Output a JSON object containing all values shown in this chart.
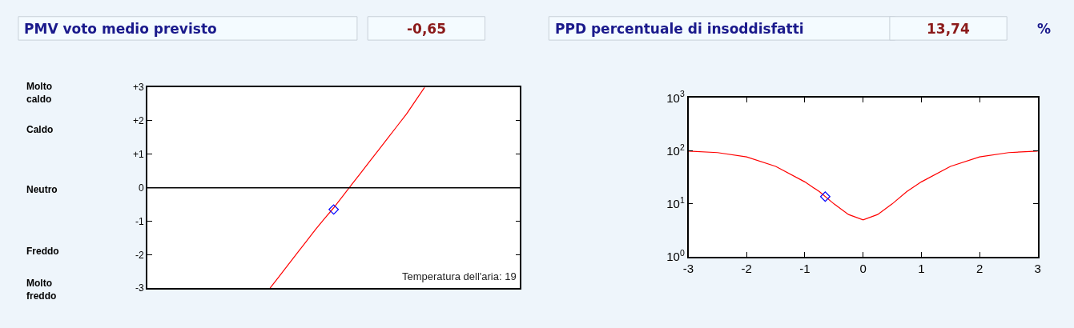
{
  "chart_data": [
    {
      "type": "line",
      "title": "PMV voto medio previsto",
      "annotations": [
        "-0,65",
        "Temperatura dell'aria: 19",
        "Molto caldo",
        "Caldo",
        "Neutro",
        "Freddo",
        "Molto freddo"
      ],
      "categories": [
        null,
        null,
        null,
        null,
        null,
        null,
        null,
        null,
        null,
        null,
        null,
        null,
        null,
        null,
        null,
        null,
        null,
        null,
        null,
        null,
        null,
        null,
        null,
        null,
        null,
        null,
        null,
        null,
        null,
        null,
        null,
        null,
        null,
        null,
        null,
        null,
        null,
        null,
        null,
        null,
        null
      ],
      "series": [
        {
          "color": "#ff0000",
          "marker": "none",
          "values": [
            null,
            null,
            null,
            null,
            null,
            null,
            null,
            null,
            null,
            null,
            null,
            null,
            null,
            -3,
            -2.65,
            -2.3,
            -1.95,
            -1.6,
            -1.25,
            -0.92,
            -0.6,
            -0.25,
            0.1,
            0.45,
            0.8,
            1.15,
            1.5,
            1.85,
            2.2,
            2.6,
            3,
            null,
            null,
            null,
            null,
            null,
            null,
            null,
            null,
            null,
            null
          ]
        },
        {
          "type": "scatter",
          "color": "#0000ff",
          "marker": "diamond",
          "values": [
            null,
            null,
            null,
            null,
            null,
            null,
            null,
            null,
            null,
            null,
            null,
            null,
            null,
            null,
            null,
            null,
            null,
            null,
            null,
            null,
            -0.65,
            null,
            null,
            null,
            null,
            null,
            null,
            null,
            null,
            null,
            null,
            null,
            null,
            null,
            null,
            null,
            null,
            null,
            null,
            null,
            null
          ]
        }
      ],
      "ylim": [
        -3,
        3
      ],
      "yticks": [
        {
          "value": 3,
          "label": "+3"
        },
        {
          "value": 2,
          "label": "+2"
        },
        {
          "value": 1,
          "label": "+1"
        },
        0,
        -1,
        -2,
        -3
      ],
      "ref_lines": [
        {
          "axis": "y",
          "value": 0,
          "color": "#000000"
        }
      ],
      "tick_labels": "y"
    },
    {
      "type": "line",
      "title": "PPD percentuale di insoddisfatti",
      "annotations": [
        "13,74",
        "%"
      ],
      "x": [
        -3,
        -2.5,
        -2,
        -1.5,
        -1,
        -0.75,
        -0.5,
        -0.25,
        0,
        0.25,
        0.5,
        0.75,
        1,
        1.5,
        2,
        2.5,
        3
      ],
      "series": [
        {
          "color": "#ff0000",
          "marker": "none",
          "values": [
            99,
            93,
            77,
            51,
            26,
            17,
            10,
            6.3,
            5,
            6.3,
            10,
            17,
            26,
            51,
            77,
            93,
            99
          ]
        },
        {
          "type": "scatter",
          "x": [
            -0.65
          ],
          "color": "#0000ff",
          "marker": "diamond",
          "values": [
            13.74
          ]
        }
      ],
      "xlim": [
        -3,
        3
      ],
      "xticks": [
        -3,
        -2,
        -1,
        0,
        1,
        2,
        3
      ],
      "ylim": [
        1,
        1000
      ],
      "yticks": [
        {
          "value": 1,
          "label": "10$^{0}$"
        },
        {
          "value": 10,
          "label": "10$^{1}$"
        },
        {
          "value": 100,
          "label": "10$^{2}$"
        },
        {
          "value": 1000,
          "label": "10$^{3}$"
        }
      ],
      "log": "y"
    }
  ]
}
